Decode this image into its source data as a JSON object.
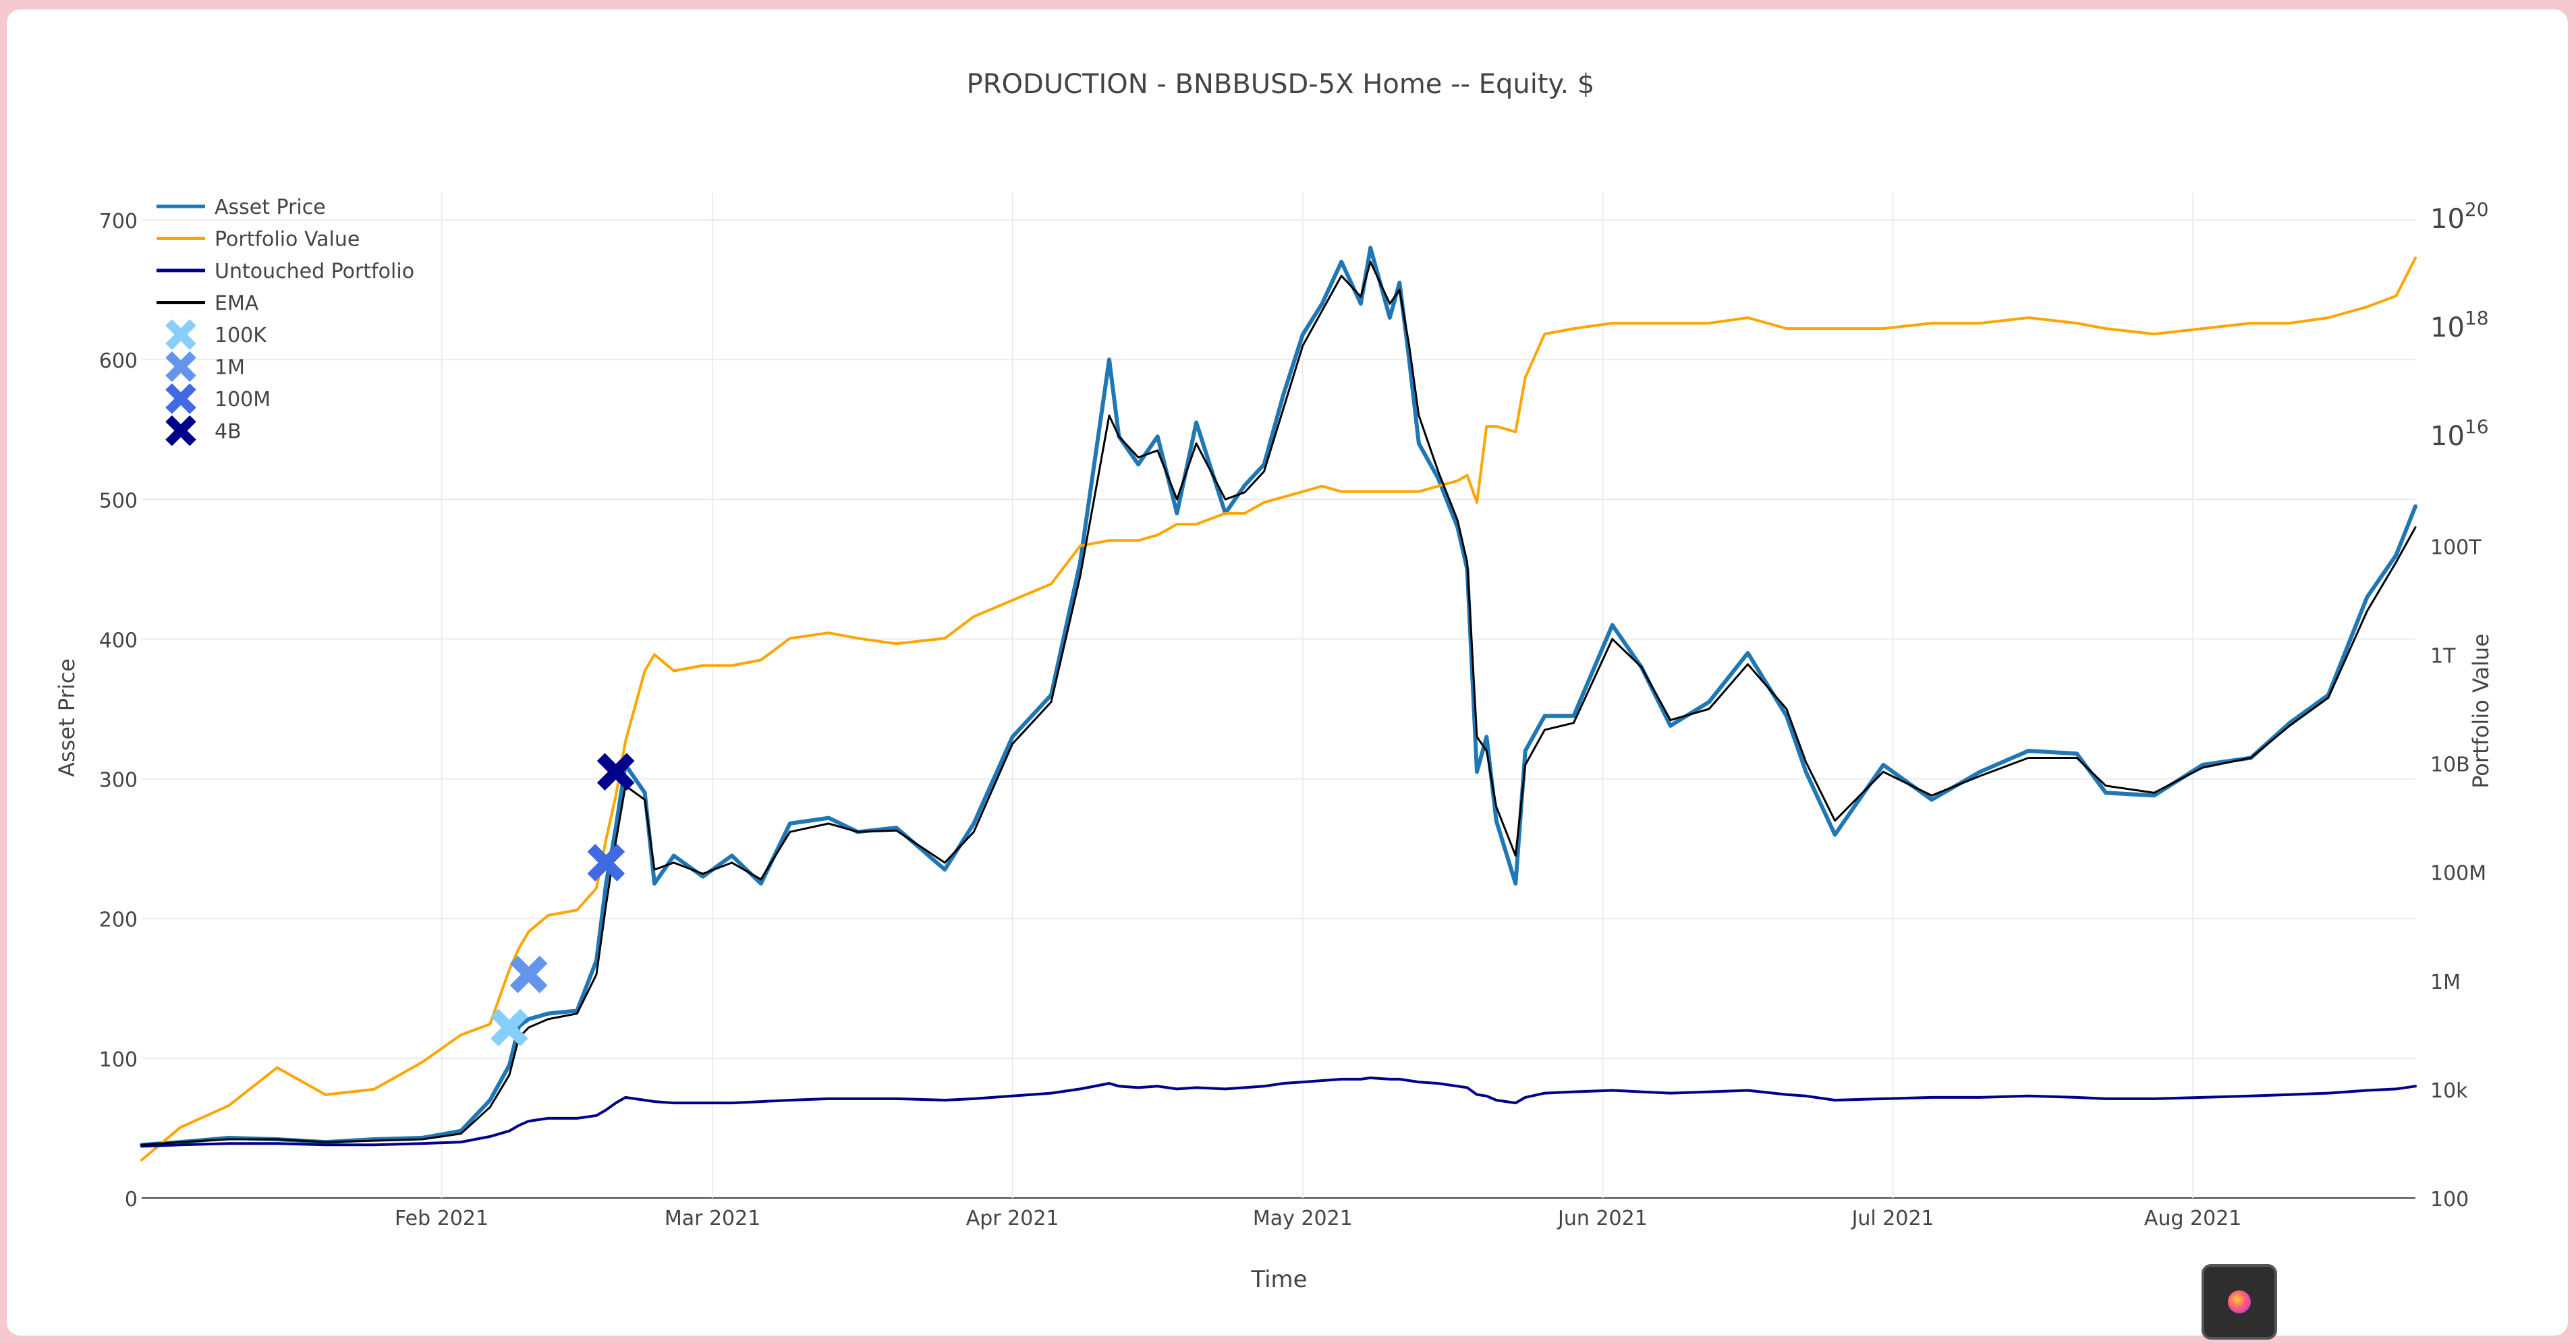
{
  "chart_data": {
    "type": "line",
    "title": "PRODUCTION - BNBBUSD-5X Home -- Equity. $",
    "xlabel": "Time",
    "ylabel": "Asset Price",
    "y2label": "Portfolio Value",
    "y_scale": "linear",
    "y2_scale": "log",
    "grid": true,
    "legend_placement": "top-left",
    "x_range": [
      "2021-01-01",
      "2021-08-24"
    ],
    "ylim": [
      0,
      700
    ],
    "y2lim_log10": [
      2,
      20
    ],
    "x_ticks": [
      {
        "date": "2021-02-01",
        "label": "Feb 2021"
      },
      {
        "date": "2021-03-01",
        "label": "Mar 2021"
      },
      {
        "date": "2021-04-01",
        "label": "Apr 2021"
      },
      {
        "date": "2021-05-01",
        "label": "May 2021"
      },
      {
        "date": "2021-06-01",
        "label": "Jun 2021"
      },
      {
        "date": "2021-07-01",
        "label": "Jul 2021"
      },
      {
        "date": "2021-08-01",
        "label": "Aug 2021"
      }
    ],
    "y_ticks": [
      {
        "value": 0,
        "label": "0"
      },
      {
        "value": 100,
        "label": "100"
      },
      {
        "value": 200,
        "label": "200"
      },
      {
        "value": 300,
        "label": "300"
      },
      {
        "value": 400,
        "label": "400"
      },
      {
        "value": 500,
        "label": "500"
      },
      {
        "value": 600,
        "label": "600"
      },
      {
        "value": 700,
        "label": "700"
      }
    ],
    "y2_ticks": [
      {
        "log10": 2,
        "label": "100",
        "sup": ""
      },
      {
        "log10": 4,
        "label": "10k",
        "sup": ""
      },
      {
        "log10": 6,
        "label": "1M",
        "sup": ""
      },
      {
        "log10": 8,
        "label": "100M",
        "sup": ""
      },
      {
        "log10": 10,
        "label": "10B",
        "sup": ""
      },
      {
        "log10": 12,
        "label": "1T",
        "sup": ""
      },
      {
        "log10": 14,
        "label": "100T",
        "sup": ""
      },
      {
        "log10": 16,
        "label": "10",
        "sup": "16"
      },
      {
        "log10": 18,
        "label": "10",
        "sup": "18"
      },
      {
        "log10": 20,
        "label": "10",
        "sup": "20"
      }
    ],
    "series": [
      {
        "name": "Asset Price",
        "color": "#1f77b4",
        "axis": "y",
        "x": [
          "2021-01-01",
          "2021-01-05",
          "2021-01-10",
          "2021-01-15",
          "2021-01-20",
          "2021-01-25",
          "2021-01-30",
          "2021-02-03",
          "2021-02-06",
          "2021-02-08",
          "2021-02-09",
          "2021-02-10",
          "2021-02-12",
          "2021-02-15",
          "2021-02-17",
          "2021-02-18",
          "2021-02-19",
          "2021-02-20",
          "2021-02-22",
          "2021-02-23",
          "2021-02-25",
          "2021-02-28",
          "2021-03-03",
          "2021-03-06",
          "2021-03-09",
          "2021-03-13",
          "2021-03-16",
          "2021-03-20",
          "2021-03-25",
          "2021-03-28",
          "2021-04-01",
          "2021-04-05",
          "2021-04-08",
          "2021-04-11",
          "2021-04-12",
          "2021-04-14",
          "2021-04-16",
          "2021-04-18",
          "2021-04-20",
          "2021-04-23",
          "2021-04-25",
          "2021-04-27",
          "2021-04-29",
          "2021-05-01",
          "2021-05-03",
          "2021-05-05",
          "2021-05-07",
          "2021-05-08",
          "2021-05-10",
          "2021-05-11",
          "2021-05-12",
          "2021-05-13",
          "2021-05-15",
          "2021-05-17",
          "2021-05-18",
          "2021-05-19",
          "2021-05-20",
          "2021-05-21",
          "2021-05-23",
          "2021-05-24",
          "2021-05-26",
          "2021-05-29",
          "2021-06-02",
          "2021-06-05",
          "2021-06-08",
          "2021-06-12",
          "2021-06-16",
          "2021-06-20",
          "2021-06-22",
          "2021-06-25",
          "2021-06-30",
          "2021-07-05",
          "2021-07-10",
          "2021-07-15",
          "2021-07-20",
          "2021-07-23",
          "2021-07-28",
          "2021-08-02",
          "2021-08-07",
          "2021-08-11",
          "2021-08-15",
          "2021-08-19",
          "2021-08-22",
          "2021-08-24"
        ],
        "y": [
          38,
          40,
          43,
          42,
          40,
          42,
          43,
          48,
          70,
          95,
          123,
          128,
          132,
          134,
          170,
          225,
          265,
          310,
          290,
          225,
          245,
          230,
          245,
          225,
          268,
          272,
          262,
          265,
          235,
          268,
          330,
          360,
          455,
          600,
          545,
          525,
          545,
          490,
          555,
          490,
          510,
          525,
          575,
          618,
          640,
          670,
          640,
          680,
          630,
          655,
          600,
          540,
          515,
          480,
          450,
          305,
          330,
          270,
          225,
          320,
          345,
          345,
          410,
          380,
          338,
          355,
          390,
          345,
          305,
          260,
          310,
          285,
          305,
          320,
          318,
          290,
          288,
          310,
          315,
          340,
          360,
          430,
          460,
          495
        ]
      },
      {
        "name": "Portfolio Value",
        "color": "#ffa500",
        "axis": "y2",
        "scale": "log10",
        "x": [
          "2021-01-01",
          "2021-01-05",
          "2021-01-10",
          "2021-01-15",
          "2021-01-20",
          "2021-01-25",
          "2021-01-30",
          "2021-02-03",
          "2021-02-06",
          "2021-02-08",
          "2021-02-09",
          "2021-02-10",
          "2021-02-12",
          "2021-02-15",
          "2021-02-17",
          "2021-02-18",
          "2021-02-19",
          "2021-02-20",
          "2021-02-22",
          "2021-02-23",
          "2021-02-25",
          "2021-02-28",
          "2021-03-03",
          "2021-03-06",
          "2021-03-09",
          "2021-03-13",
          "2021-03-16",
          "2021-03-20",
          "2021-03-25",
          "2021-03-28",
          "2021-04-01",
          "2021-04-05",
          "2021-04-08",
          "2021-04-11",
          "2021-04-12",
          "2021-04-14",
          "2021-04-16",
          "2021-04-18",
          "2021-04-20",
          "2021-04-23",
          "2021-04-25",
          "2021-04-27",
          "2021-04-29",
          "2021-05-01",
          "2021-05-03",
          "2021-05-05",
          "2021-05-07",
          "2021-05-08",
          "2021-05-10",
          "2021-05-11",
          "2021-05-12",
          "2021-05-13",
          "2021-05-15",
          "2021-05-17",
          "2021-05-18",
          "2021-05-19",
          "2021-05-20",
          "2021-05-21",
          "2021-05-23",
          "2021-05-24",
          "2021-05-26",
          "2021-05-29",
          "2021-06-02",
          "2021-06-05",
          "2021-06-08",
          "2021-06-12",
          "2021-06-16",
          "2021-06-20",
          "2021-06-22",
          "2021-06-25",
          "2021-06-30",
          "2021-07-05",
          "2021-07-10",
          "2021-07-15",
          "2021-07-20",
          "2021-07-23",
          "2021-07-28",
          "2021-08-02",
          "2021-08-07",
          "2021-08-11",
          "2021-08-15",
          "2021-08-19",
          "2021-08-22",
          "2021-08-24"
        ],
        "y": [
          2.7,
          3.3,
          3.7,
          4.4,
          3.9,
          4.0,
          4.5,
          5.0,
          5.2,
          6.2,
          6.6,
          6.9,
          7.2,
          7.3,
          7.7,
          8.6,
          9.4,
          10.4,
          11.7,
          12.0,
          11.7,
          11.8,
          11.8,
          11.9,
          12.3,
          12.4,
          12.3,
          12.2,
          12.3,
          12.7,
          13.0,
          13.3,
          14.0,
          14.1,
          14.1,
          14.1,
          14.2,
          14.4,
          14.4,
          14.6,
          14.6,
          14.8,
          14.9,
          15.0,
          15.1,
          15.0,
          15.0,
          15.0,
          15.0,
          15.0,
          15.0,
          15.0,
          15.1,
          15.2,
          15.3,
          14.8,
          16.2,
          16.2,
          16.1,
          17.1,
          17.9,
          18.0,
          18.1,
          18.1,
          18.1,
          18.1,
          18.2,
          18.0,
          18.0,
          18.0,
          18.0,
          18.1,
          18.1,
          18.2,
          18.1,
          18.0,
          17.9,
          18.0,
          18.1,
          18.1,
          18.2,
          18.4,
          18.6,
          19.3
        ]
      },
      {
        "name": "Untouched Portfolio",
        "color": "#00008b",
        "axis": "y",
        "x": [
          "2021-01-01",
          "2021-01-05",
          "2021-01-10",
          "2021-01-15",
          "2021-01-20",
          "2021-01-25",
          "2021-01-30",
          "2021-02-03",
          "2021-02-06",
          "2021-02-08",
          "2021-02-09",
          "2021-02-10",
          "2021-02-12",
          "2021-02-15",
          "2021-02-17",
          "2021-02-18",
          "2021-02-19",
          "2021-02-20",
          "2021-02-22",
          "2021-02-23",
          "2021-02-25",
          "2021-02-28",
          "2021-03-03",
          "2021-03-06",
          "2021-03-09",
          "2021-03-13",
          "2021-03-16",
          "2021-03-20",
          "2021-03-25",
          "2021-03-28",
          "2021-04-01",
          "2021-04-05",
          "2021-04-08",
          "2021-04-11",
          "2021-04-12",
          "2021-04-14",
          "2021-04-16",
          "2021-04-18",
          "2021-04-20",
          "2021-04-23",
          "2021-04-25",
          "2021-04-27",
          "2021-04-29",
          "2021-05-01",
          "2021-05-03",
          "2021-05-05",
          "2021-05-07",
          "2021-05-08",
          "2021-05-10",
          "2021-05-11",
          "2021-05-12",
          "2021-05-13",
          "2021-05-15",
          "2021-05-17",
          "2021-05-18",
          "2021-05-19",
          "2021-05-20",
          "2021-05-21",
          "2021-05-23",
          "2021-05-24",
          "2021-05-26",
          "2021-05-29",
          "2021-06-02",
          "2021-06-05",
          "2021-06-08",
          "2021-06-12",
          "2021-06-16",
          "2021-06-20",
          "2021-06-22",
          "2021-06-25",
          "2021-06-30",
          "2021-07-05",
          "2021-07-10",
          "2021-07-15",
          "2021-07-20",
          "2021-07-23",
          "2021-07-28",
          "2021-08-02",
          "2021-08-07",
          "2021-08-11",
          "2021-08-15",
          "2021-08-19",
          "2021-08-22",
          "2021-08-24"
        ],
        "y": [
          37,
          38,
          39,
          39,
          38,
          38,
          39,
          40,
          44,
          48,
          52,
          55,
          57,
          57,
          59,
          63,
          68,
          72,
          70,
          69,
          68,
          68,
          68,
          69,
          70,
          71,
          71,
          71,
          70,
          71,
          73,
          75,
          78,
          82,
          80,
          79,
          80,
          78,
          79,
          78,
          79,
          80,
          82,
          83,
          84,
          85,
          85,
          86,
          85,
          85,
          84,
          83,
          82,
          80,
          79,
          74,
          73,
          70,
          68,
          72,
          75,
          76,
          77,
          76,
          75,
          76,
          77,
          74,
          73,
          70,
          71,
          72,
          72,
          73,
          72,
          71,
          71,
          72,
          73,
          74,
          75,
          77,
          78,
          80
        ]
      },
      {
        "name": "EMA",
        "color": "#000000",
        "axis": "y",
        "x": [
          "2021-01-01",
          "2021-01-05",
          "2021-01-10",
          "2021-01-15",
          "2021-01-20",
          "2021-01-25",
          "2021-01-30",
          "2021-02-03",
          "2021-02-06",
          "2021-02-08",
          "2021-02-09",
          "2021-02-10",
          "2021-02-12",
          "2021-02-15",
          "2021-02-17",
          "2021-02-18",
          "2021-02-19",
          "2021-02-20",
          "2021-02-22",
          "2021-02-23",
          "2021-02-25",
          "2021-02-28",
          "2021-03-03",
          "2021-03-06",
          "2021-03-09",
          "2021-03-13",
          "2021-03-16",
          "2021-03-20",
          "2021-03-25",
          "2021-03-28",
          "2021-04-01",
          "2021-04-05",
          "2021-04-08",
          "2021-04-11",
          "2021-04-12",
          "2021-04-14",
          "2021-04-16",
          "2021-04-18",
          "2021-04-20",
          "2021-04-23",
          "2021-04-25",
          "2021-04-27",
          "2021-04-29",
          "2021-05-01",
          "2021-05-03",
          "2021-05-05",
          "2021-05-07",
          "2021-05-08",
          "2021-05-10",
          "2021-05-11",
          "2021-05-12",
          "2021-05-13",
          "2021-05-15",
          "2021-05-17",
          "2021-05-18",
          "2021-05-19",
          "2021-05-20",
          "2021-05-21",
          "2021-05-23",
          "2021-05-24",
          "2021-05-26",
          "2021-05-29",
          "2021-06-02",
          "2021-06-05",
          "2021-06-08",
          "2021-06-12",
          "2021-06-16",
          "2021-06-20",
          "2021-06-22",
          "2021-06-25",
          "2021-06-30",
          "2021-07-05",
          "2021-07-10",
          "2021-07-15",
          "2021-07-20",
          "2021-07-23",
          "2021-07-28",
          "2021-08-02",
          "2021-08-07",
          "2021-08-11",
          "2021-08-15",
          "2021-08-19",
          "2021-08-22",
          "2021-08-24"
        ],
        "y": [
          38,
          40,
          42,
          42,
          40,
          41,
          42,
          46,
          65,
          88,
          115,
          122,
          128,
          132,
          160,
          210,
          255,
          295,
          285,
          235,
          240,
          232,
          240,
          228,
          262,
          268,
          262,
          263,
          240,
          262,
          325,
          355,
          445,
          560,
          545,
          530,
          535,
          500,
          540,
          500,
          505,
          520,
          565,
          610,
          635,
          660,
          645,
          670,
          640,
          650,
          610,
          560,
          520,
          485,
          455,
          330,
          320,
          280,
          245,
          310,
          335,
          340,
          400,
          380,
          342,
          350,
          382,
          350,
          312,
          270,
          305,
          288,
          302,
          315,
          315,
          295,
          290,
          308,
          315,
          338,
          358,
          420,
          455,
          480
        ]
      }
    ],
    "markers": [
      {
        "name": "100K",
        "color": "#87cefa",
        "date": "2021-02-08",
        "value": 122
      },
      {
        "name": "1M",
        "color": "#6495ed",
        "date": "2021-02-10",
        "value": 160
      },
      {
        "name": "100M",
        "color": "#4169e1",
        "date": "2021-02-18",
        "value": 240
      },
      {
        "name": "4B",
        "color": "#00008b",
        "date": "2021-02-19",
        "value": 305
      }
    ]
  }
}
